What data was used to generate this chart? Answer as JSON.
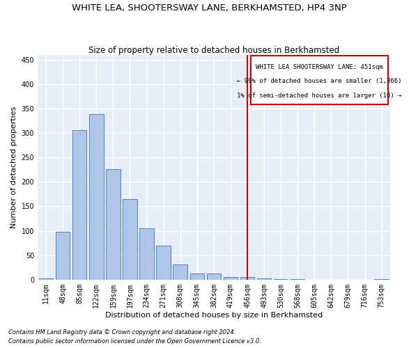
{
  "title": "WHITE LEA, SHOOTERSWAY LANE, BERKHAMSTED, HP4 3NP",
  "subtitle": "Size of property relative to detached houses in Berkhamsted",
  "xlabel": "Distribution of detached houses by size in Berkhamsted",
  "ylabel": "Number of detached properties",
  "footer_line1": "Contains HM Land Registry data © Crown copyright and database right 2024.",
  "footer_line2": "Contains public sector information licensed under the Open Government Licence v3.0.",
  "categories": [
    "11sqm",
    "48sqm",
    "85sqm",
    "122sqm",
    "159sqm",
    "197sqm",
    "234sqm",
    "271sqm",
    "308sqm",
    "345sqm",
    "382sqm",
    "419sqm",
    "456sqm",
    "493sqm",
    "530sqm",
    "568sqm",
    "605sqm",
    "642sqm",
    "679sqm",
    "716sqm",
    "753sqm"
  ],
  "bar_values": [
    3,
    98,
    305,
    338,
    226,
    165,
    105,
    69,
    31,
    13,
    13,
    5,
    5,
    2,
    1,
    1,
    0,
    0,
    0,
    0,
    1
  ],
  "bar_color": "#aec6e8",
  "bar_edge_color": "#5080c0",
  "highlight_bar_index": 12,
  "vline_x": 12,
  "vline_color": "#cc0000",
  "annotation_text_line1": "WHITE LEA SHOOTERSWAY LANE: 451sqm",
  "annotation_text_line2": "← 99% of detached houses are smaller (1,366)",
  "annotation_text_line3": "1% of semi-detached houses are larger (10) →",
  "annotation_box_color": "#cc0000",
  "ylim": [
    0,
    460
  ],
  "yticks": [
    0,
    50,
    100,
    150,
    200,
    250,
    300,
    350,
    400,
    450
  ],
  "bg_color": "#e8eef8",
  "grid_color": "#ffffff",
  "title_fontsize": 9.5,
  "subtitle_fontsize": 8.5,
  "axis_label_fontsize": 8,
  "tick_fontsize": 7,
  "footer_fontsize": 6
}
